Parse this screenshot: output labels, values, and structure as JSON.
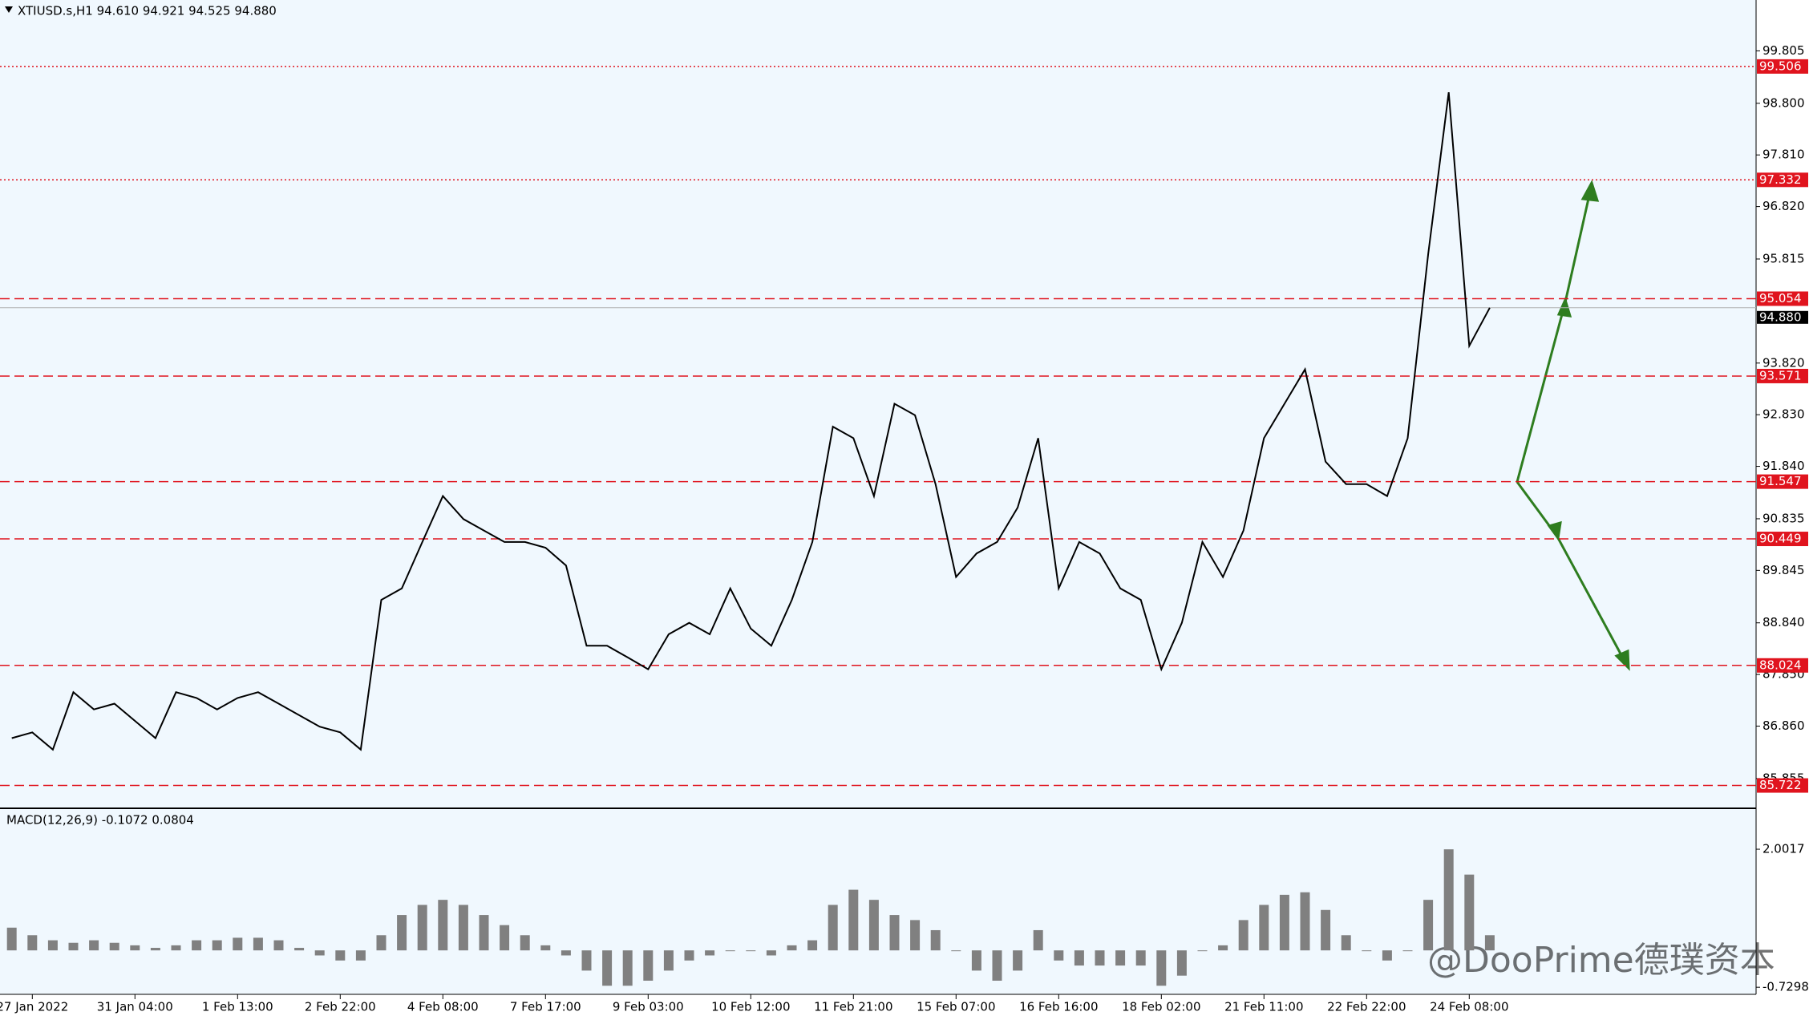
{
  "chart_data": [
    {
      "type": "line",
      "title": "XTIUSD.s,H1  94.610 94.921 94.525 94.880",
      "color": "#000000",
      "categories": [
        null,
        "27 Jan 2022",
        null,
        null,
        null,
        null,
        "31 Jan 04:00",
        null,
        null,
        null,
        null,
        "1 Feb 13:00",
        null,
        null,
        null,
        null,
        "2 Feb 22:00",
        null,
        null,
        null,
        null,
        "4 Feb 08:00",
        null,
        null,
        null,
        null,
        "7 Feb 17:00",
        null,
        null,
        null,
        null,
        "9 Feb 03:00",
        null,
        null,
        null,
        null,
        "10 Feb 12:00",
        null,
        null,
        null,
        null,
        "11 Feb 21:00",
        null,
        null,
        null,
        null,
        "15 Feb 07:00",
        null,
        null,
        null,
        null,
        "16 Feb 16:00",
        null,
        null,
        null,
        null,
        "18 Feb 02:00",
        null,
        null,
        null,
        null,
        "21 Feb 11:00",
        null,
        null,
        null,
        null,
        "22 Feb 22:00",
        null,
        null,
        null,
        null,
        "24 Feb 08:00",
        null
      ],
      "values": [
        86.63,
        86.74,
        86.41,
        87.51,
        87.18,
        87.29,
        86.96,
        86.63,
        87.51,
        87.4,
        87.18,
        87.4,
        87.51,
        87.29,
        87.07,
        86.85,
        86.74,
        86.41,
        89.28,
        89.5,
        90.39,
        91.27,
        90.83,
        90.61,
        90.39,
        90.39,
        90.28,
        89.94,
        88.4,
        88.4,
        88.18,
        87.95,
        88.62,
        88.84,
        88.62,
        89.5,
        88.73,
        88.4,
        89.28,
        90.39,
        92.6,
        92.38,
        91.27,
        93.04,
        92.82,
        91.5,
        89.72,
        90.17,
        90.39,
        91.05,
        92.38,
        89.5,
        90.39,
        90.17,
        89.5,
        89.28,
        87.95,
        88.84,
        90.39,
        89.72,
        90.61,
        92.38,
        93.04,
        93.7,
        91.93,
        91.5,
        91.5,
        91.27,
        92.38,
        95.91,
        99.01,
        94.15,
        94.88
      ],
      "ylim": [
        85.3,
        100.78
      ],
      "yticks": [
        99.805,
        {
          "value": 98.8,
          "label": "98.800"
        },
        {
          "value": 97.81,
          "label": "97.810"
        },
        {
          "value": 96.82,
          "label": "96.820"
        },
        95.815,
        {
          "value": 93.82,
          "label": "93.820"
        },
        {
          "value": 92.83,
          "label": "92.830"
        },
        {
          "value": 91.84,
          "label": "91.840"
        },
        90.835,
        89.845,
        {
          "value": 88.84,
          "label": "88.840"
        },
        {
          "value": 87.85,
          "label": "87.850"
        },
        {
          "value": 86.86,
          "label": "86.860"
        },
        85.855
      ],
      "levels": [
        {
          "value": 99.506,
          "style": "dotted"
        },
        {
          "value": 97.332,
          "style": "dotted"
        },
        {
          "value": 95.054,
          "style": "dashed"
        },
        {
          "value": 93.571,
          "style": "dashed"
        },
        {
          "value": 91.547,
          "style": "dashed"
        },
        {
          "value": 90.449,
          "style": "dashed"
        },
        {
          "value": 88.024,
          "style": "dashed"
        },
        {
          "value": 85.722,
          "style": "dashed"
        }
      ],
      "level_color": "#e0141e",
      "last": {
        "value": 94.88,
        "label": "94.880"
      },
      "watermark": "@DooPrime德璞资本"
    },
    {
      "type": "bar",
      "title": "MACD(12,26,9) -0.1072 0.0804",
      "color": "#808080",
      "values": [
        0.45,
        0.3,
        0.2,
        0.15,
        0.2,
        0.15,
        0.1,
        0.05,
        0.1,
        0.2,
        0.2,
        0.25,
        0.25,
        0.2,
        0.05,
        -0.1,
        -0.2,
        -0.2,
        0.3,
        0.7,
        0.9,
        1.0,
        0.9,
        0.7,
        0.5,
        0.3,
        0.1,
        -0.1,
        -0.4,
        -0.7,
        -0.7,
        -0.6,
        -0.4,
        -0.2,
        -0.1,
        0.0,
        0.0,
        -0.1,
        0.1,
        0.2,
        0.9,
        1.2,
        1.0,
        0.7,
        0.6,
        0.4,
        0.0,
        -0.4,
        -0.6,
        -0.4,
        0.4,
        -0.2,
        -0.3,
        -0.3,
        -0.3,
        -0.3,
        -0.7,
        -0.5,
        0.0,
        0.1,
        0.6,
        0.9,
        1.1,
        1.15,
        0.8,
        0.3,
        0.0,
        -0.2,
        0.0,
        1.0,
        2.0,
        1.5,
        0.3
      ],
      "ylim": [
        -0.87,
        2.78
      ],
      "yticks": [
        2.0017,
        -0.7298
      ]
    }
  ]
}
